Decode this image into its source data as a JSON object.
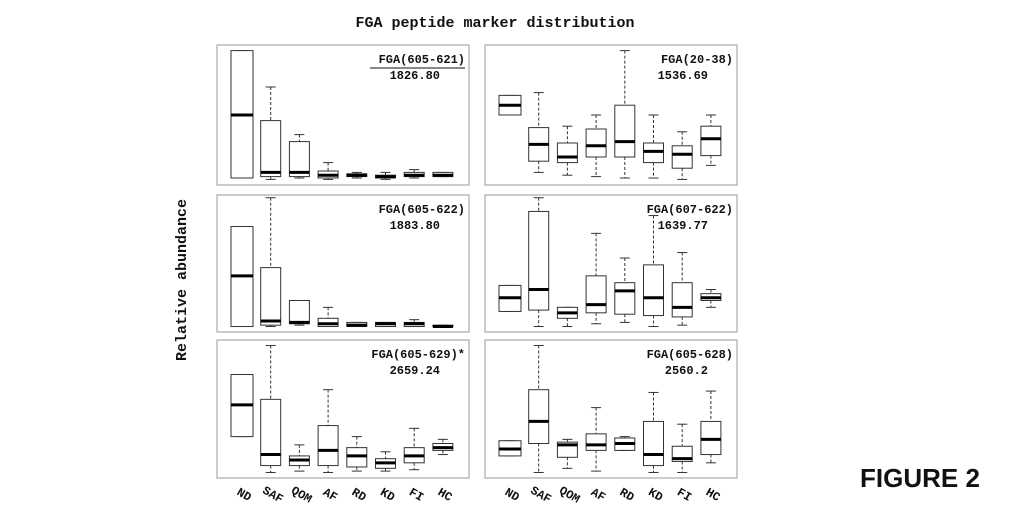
{
  "title": "FGA peptide marker distribution",
  "y_label": "Relative abundance",
  "figure_label": "FIGURE 2",
  "categories": [
    "ND",
    "SAF",
    "QOM",
    "AF",
    "RD",
    "KD",
    "FI",
    "HC"
  ],
  "chart_data": [
    {
      "type": "box",
      "title": "FGA(605-621)",
      "title_underlined": true,
      "subtitle": "1826.80",
      "ylim": [
        0,
        100
      ],
      "max": [
        96,
        70,
        36,
        16,
        9,
        9,
        11,
        9
      ],
      "q3": [
        96,
        46,
        31,
        10,
        8,
        7,
        9,
        9
      ],
      "median": [
        50,
        9,
        9,
        7,
        7,
        6,
        7,
        7
      ],
      "q1": [
        5,
        6,
        6,
        5,
        6,
        5,
        6,
        6
      ],
      "min": [
        5,
        4,
        5,
        4,
        5,
        4,
        5,
        6
      ]
    },
    {
      "type": "box",
      "title": "FGA(20-38)",
      "subtitle": "1536.69",
      "ylim": [
        0,
        100
      ],
      "max": [
        64,
        66,
        42,
        50,
        96,
        50,
        38,
        50
      ],
      "q3": [
        64,
        41,
        30,
        40,
        57,
        30,
        28,
        42
      ],
      "median": [
        57,
        29,
        20,
        28,
        31,
        24,
        22,
        33
      ],
      "q1": [
        50,
        17,
        16,
        20,
        20,
        16,
        12,
        21
      ],
      "min": [
        50,
        9,
        7,
        6,
        5,
        5,
        4,
        14
      ]
    },
    {
      "type": "box",
      "title": "FGA(605-622)",
      "subtitle": "1883.80",
      "ylim": [
        0,
        100
      ],
      "max": [
        77,
        98,
        23,
        18,
        7,
        7,
        9,
        5
      ],
      "q3": [
        77,
        47,
        23,
        10,
        7,
        7,
        7,
        5
      ],
      "median": [
        41,
        8,
        7,
        6,
        5,
        6,
        6,
        4
      ],
      "q1": [
        4,
        5,
        6,
        4,
        4,
        4,
        4,
        4
      ],
      "min": [
        4,
        4,
        5,
        4,
        4,
        4,
        4,
        4
      ]
    },
    {
      "type": "box",
      "title": "FGA(607-622)",
      "subtitle": "1639.77",
      "ylim": [
        0,
        100
      ],
      "max": [
        34,
        98,
        18,
        72,
        54,
        85,
        58,
        31
      ],
      "q3": [
        34,
        88,
        18,
        41,
        36,
        49,
        36,
        28
      ],
      "median": [
        25,
        31,
        14,
        20,
        30,
        25,
        18,
        25
      ],
      "q1": [
        15,
        16,
        10,
        14,
        13,
        12,
        11,
        23
      ],
      "min": [
        15,
        4,
        4,
        6,
        7,
        4,
        5,
        18
      ]
    },
    {
      "type": "box",
      "title": "FGA(605-629)*",
      "subtitle": "2659.24",
      "ylim": [
        0,
        100
      ],
      "max": [
        75,
        96,
        24,
        64,
        30,
        19,
        36,
        28
      ],
      "q3": [
        75,
        57,
        16,
        38,
        22,
        14,
        22,
        25
      ],
      "median": [
        53,
        17,
        13,
        20,
        16,
        11,
        16,
        22
      ],
      "q1": [
        30,
        9,
        9,
        9,
        8,
        7,
        11,
        20
      ],
      "min": [
        30,
        4,
        5,
        4,
        5,
        5,
        6,
        17
      ]
    },
    {
      "type": "box",
      "title": "FGA(605-628)",
      "subtitle": "2560.2",
      "ylim": [
        0,
        100
      ],
      "max": [
        27,
        96,
        28,
        51,
        30,
        62,
        39,
        63
      ],
      "q3": [
        27,
        64,
        26,
        32,
        29,
        41,
        23,
        41
      ],
      "median": [
        21,
        41,
        24,
        24,
        25,
        17,
        14,
        28
      ],
      "q1": [
        16,
        25,
        15,
        20,
        20,
        9,
        12,
        17
      ],
      "min": [
        16,
        4,
        7,
        5,
        20,
        4,
        4,
        11
      ]
    }
  ]
}
